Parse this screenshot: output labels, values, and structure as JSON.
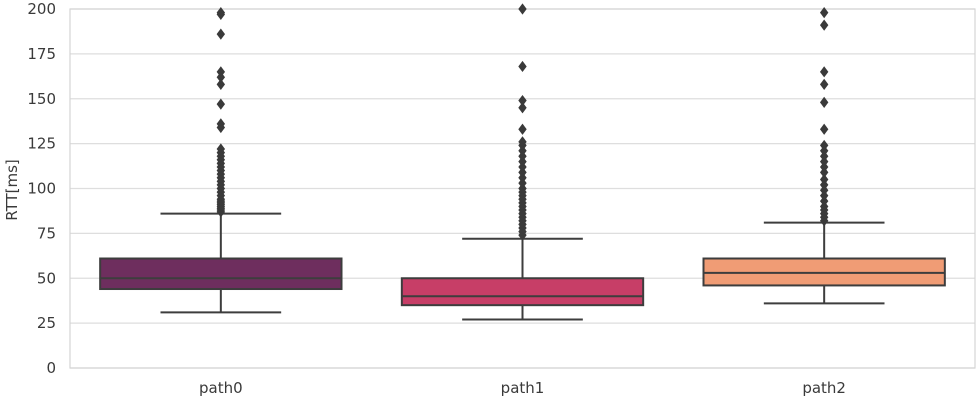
{
  "chart_data": {
    "type": "box",
    "title": "",
    "xlabel": "",
    "ylabel": "RTT[ms]",
    "ylim": [
      0,
      200
    ],
    "yticks": [
      0,
      25,
      50,
      75,
      100,
      125,
      150,
      175,
      200
    ],
    "categories": [
      "path0",
      "path1",
      "path2"
    ],
    "grid": true,
    "series": [
      {
        "category": "path0",
        "color": "#6e2e5e",
        "whisker_low": 31,
        "q1": 44,
        "median": 50,
        "q3": 61,
        "whisker_high": 86,
        "outliers": [
          87,
          88,
          89,
          90,
          91,
          92,
          93,
          94,
          96,
          98,
          100,
          102,
          104,
          106,
          108,
          110,
          112,
          114,
          116,
          118,
          120,
          122,
          134,
          136,
          147,
          158,
          162,
          165,
          186,
          197,
          198
        ]
      },
      {
        "category": "path1",
        "color": "#c73e67",
        "whisker_low": 27,
        "q1": 35,
        "median": 40,
        "q3": 50,
        "whisker_high": 72,
        "outliers": [
          74,
          76,
          78,
          80,
          82,
          84,
          86,
          88,
          90,
          92,
          94,
          96,
          98,
          100,
          103,
          106,
          109,
          112,
          115,
          118,
          121,
          124,
          126,
          133,
          145,
          149,
          168,
          200
        ]
      },
      {
        "category": "path2",
        "color": "#f09c75",
        "whisker_low": 36,
        "q1": 46,
        "median": 53,
        "q3": 61,
        "whisker_high": 81,
        "outliers": [
          82,
          84,
          86,
          88,
          90,
          93,
          96,
          99,
          102,
          105,
          109,
          112,
          115,
          118,
          121,
          124,
          133,
          148,
          158,
          165,
          191,
          198
        ]
      }
    ]
  }
}
